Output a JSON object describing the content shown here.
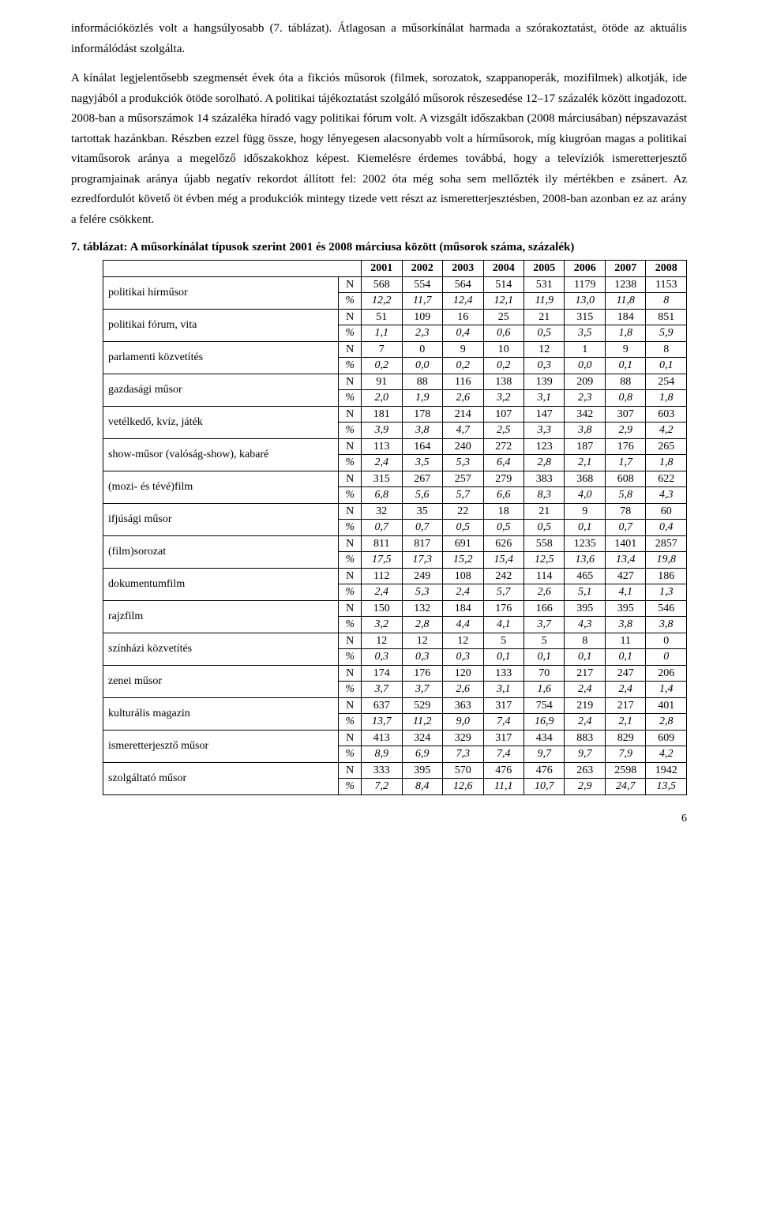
{
  "paragraph": "információközlés volt a hangsúlyosabb (7. táblázat). Átlagosan a műsorkínálat harmada a szórakoztatást, ötöde az aktuális informálódást szolgálta.",
  "paragraph2": "A kínálat legjelentősebb szegmensét évek óta a fikciós műsorok (filmek, sorozatok, szappanoperák, mozifilmek) alkotják, ide nagyjából a produkciók ötöde sorolható. A politikai tájékoztatást szolgáló műsorok részesedése 12–17 százalék között ingadozott. 2008-ban a műsorszámok 14 százaléka híradó vagy politikai fórum volt. A vizsgált időszakban (2008 márciusában) népszavazást tartottak hazánkban. Részben ezzel függ össze, hogy lényegesen alacsonyabb volt a hírműsorok, míg kiugróan magas a politikai vitaműsorok aránya a megelőző időszakokhoz képest. Kiemelésre érdemes továbbá, hogy a televíziók ismeretterjesztő programjainak aránya újabb negatív rekordot állított fel: 2002 óta még soha sem mellőzték ily mértékben e zsánert. Az ezredfordulót követő öt évben még a produkciók mintegy tizede vett részt az ismeretterjesztésben, 2008-ban azonban ez az arány a felére csökkent.",
  "caption": "7. táblázat: A műsorkínálat típusok szerint 2001 és 2008 márciusa között (műsorok száma, százalék)",
  "years": [
    "2001",
    "2002",
    "2003",
    "2004",
    "2005",
    "2006",
    "2007",
    "2008"
  ],
  "measures": [
    "N",
    "%"
  ],
  "rows": [
    {
      "label": "politikai hírműsor",
      "N": [
        "568",
        "554",
        "564",
        "514",
        "531",
        "1179",
        "1238",
        "1153"
      ],
      "P": [
        "12,2",
        "11,7",
        "12,4",
        "12,1",
        "11,9",
        "13,0",
        "11,8",
        "8"
      ]
    },
    {
      "label": "politikai fórum, vita",
      "N": [
        "51",
        "109",
        "16",
        "25",
        "21",
        "315",
        "184",
        "851"
      ],
      "P": [
        "1,1",
        "2,3",
        "0,4",
        "0,6",
        "0,5",
        "3,5",
        "1,8",
        "5,9"
      ]
    },
    {
      "label": "parlamenti közvetítés",
      "N": [
        "7",
        "0",
        "9",
        "10",
        "12",
        "1",
        "9",
        "8"
      ],
      "P": [
        "0,2",
        "0,0",
        "0,2",
        "0,2",
        "0,3",
        "0,0",
        "0,1",
        "0,1"
      ]
    },
    {
      "label": "gazdasági műsor",
      "N": [
        "91",
        "88",
        "116",
        "138",
        "139",
        "209",
        "88",
        "254"
      ],
      "P": [
        "2,0",
        "1,9",
        "2,6",
        "3,2",
        "3,1",
        "2,3",
        "0,8",
        "1,8"
      ]
    },
    {
      "label": "vetélkedő, kvíz, játék",
      "N": [
        "181",
        "178",
        "214",
        "107",
        "147",
        "342",
        "307",
        "603"
      ],
      "P": [
        "3,9",
        "3,8",
        "4,7",
        "2,5",
        "3,3",
        "3,8",
        "2,9",
        "4,2"
      ]
    },
    {
      "label": "show-műsor (valóság-show), kabaré",
      "N": [
        "113",
        "164",
        "240",
        "272",
        "123",
        "187",
        "176",
        "265"
      ],
      "P": [
        "2,4",
        "3,5",
        "5,3",
        "6,4",
        "2,8",
        "2,1",
        "1,7",
        "1,8"
      ]
    },
    {
      "label": "(mozi- és tévé)film",
      "N": [
        "315",
        "267",
        "257",
        "279",
        "383",
        "368",
        "608",
        "622"
      ],
      "P": [
        "6,8",
        "5,6",
        "5,7",
        "6,6",
        "8,3",
        "4,0",
        "5,8",
        "4,3"
      ]
    },
    {
      "label": "ifjúsági műsor",
      "N": [
        "32",
        "35",
        "22",
        "18",
        "21",
        "9",
        "78",
        "60"
      ],
      "P": [
        "0,7",
        "0,7",
        "0,5",
        "0,5",
        "0,5",
        "0,1",
        "0,7",
        "0,4"
      ]
    },
    {
      "label": "(film)sorozat",
      "N": [
        "811",
        "817",
        "691",
        "626",
        "558",
        "1235",
        "1401",
        "2857"
      ],
      "P": [
        "17,5",
        "17,3",
        "15,2",
        "15,4",
        "12,5",
        "13,6",
        "13,4",
        "19,8"
      ]
    },
    {
      "label": "dokumentumfilm",
      "N": [
        "112",
        "249",
        "108",
        "242",
        "114",
        "465",
        "427",
        "186"
      ],
      "P": [
        "2,4",
        "5,3",
        "2,4",
        "5,7",
        "2,6",
        "5,1",
        "4,1",
        "1,3"
      ]
    },
    {
      "label": "rajzfilm",
      "N": [
        "150",
        "132",
        "184",
        "176",
        "166",
        "395",
        "395",
        "546"
      ],
      "P": [
        "3,2",
        "2,8",
        "4,4",
        "4,1",
        "3,7",
        "4,3",
        "3,8",
        "3,8"
      ]
    },
    {
      "label": "színházi közvetítés",
      "N": [
        "12",
        "12",
        "12",
        "5",
        "5",
        "8",
        "11",
        "0"
      ],
      "P": [
        "0,3",
        "0,3",
        "0,3",
        "0,1",
        "0,1",
        "0,1",
        "0,1",
        "0"
      ]
    },
    {
      "label": "zenei műsor",
      "N": [
        "174",
        "176",
        "120",
        "133",
        "70",
        "217",
        "247",
        "206"
      ],
      "P": [
        "3,7",
        "3,7",
        "2,6",
        "3,1",
        "1,6",
        "2,4",
        "2,4",
        "1,4"
      ]
    },
    {
      "label": "kulturális magazin",
      "N": [
        "637",
        "529",
        "363",
        "317",
        "754",
        "219",
        "217",
        "401"
      ],
      "P": [
        "13,7",
        "11,2",
        "9,0",
        "7,4",
        "16,9",
        "2,4",
        "2,1",
        "2,8"
      ]
    },
    {
      "label": "ismeretterjesztő műsor",
      "N": [
        "413",
        "324",
        "329",
        "317",
        "434",
        "883",
        "829",
        "609"
      ],
      "P": [
        "8,9",
        "6,9",
        "7,3",
        "7,4",
        "9,7",
        "9,7",
        "7,9",
        "4,2"
      ]
    },
    {
      "label": "szolgáltató műsor",
      "N": [
        "333",
        "395",
        "570",
        "476",
        "476",
        "263",
        "2598",
        "1942"
      ],
      "P": [
        "7,2",
        "8,4",
        "12,6",
        "11,1",
        "10,7",
        "2,9",
        "24,7",
        "13,5"
      ]
    }
  ],
  "page_number": "6"
}
